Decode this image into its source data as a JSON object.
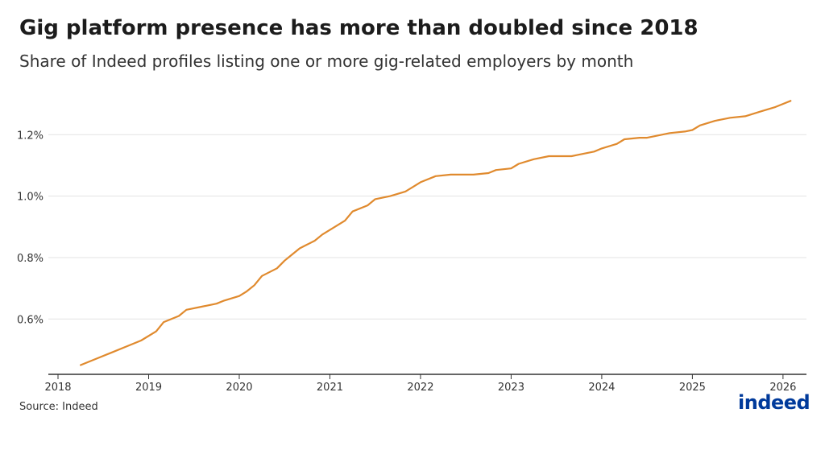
{
  "title": "Gig platform presence has more than doubled since 2018",
  "subtitle": "Share of Indeed profiles listing one or more gig-related employers by month",
  "source": "Source: Indeed",
  "logo_text": "indeed",
  "colors": {
    "line": "#e08a2e",
    "grid": "#e3e3e3",
    "axis": "#333333",
    "logo": "#003a9b"
  },
  "chart_data": {
    "type": "line",
    "title": "Gig platform presence has more than doubled since 2018",
    "subtitle": "Share of Indeed profiles listing one or more gig-related employers by month",
    "xlabel": "",
    "ylabel": "",
    "y_unit": "%",
    "grid": "horizontal",
    "legend": "none",
    "x_ticks": [
      "2018",
      "2019",
      "2020",
      "2021",
      "2022",
      "2023",
      "2024",
      "2025",
      "2026"
    ],
    "y_ticks": [
      "0.6%",
      "0.8%",
      "1.0%",
      "1.2%"
    ],
    "y_tick_values": [
      0.6,
      0.8,
      1.0,
      1.2
    ],
    "xlim": [
      "2018-01",
      "2026-04"
    ],
    "ylim": [
      0.42,
      1.35
    ],
    "series": [
      {
        "points": [
          [
            "2018-04",
            0.45
          ],
          [
            "2018-06",
            0.47
          ],
          [
            "2018-08",
            0.49
          ],
          [
            "2018-10",
            0.51
          ],
          [
            "2018-12",
            0.53
          ],
          [
            "2019-02",
            0.56
          ],
          [
            "2019-03",
            0.59
          ],
          [
            "2019-05",
            0.61
          ],
          [
            "2019-06",
            0.63
          ],
          [
            "2019-08",
            0.64
          ],
          [
            "2019-10",
            0.65
          ],
          [
            "2019-11",
            0.66
          ],
          [
            "2020-01",
            0.675
          ],
          [
            "2020-02",
            0.69
          ],
          [
            "2020-03",
            0.71
          ],
          [
            "2020-04",
            0.74
          ],
          [
            "2020-06",
            0.765
          ],
          [
            "2020-07",
            0.79
          ],
          [
            "2020-08",
            0.81
          ],
          [
            "2020-09",
            0.83
          ],
          [
            "2020-11",
            0.855
          ],
          [
            "2020-12",
            0.875
          ],
          [
            "2021-01",
            0.89
          ],
          [
            "2021-03",
            0.92
          ],
          [
            "2021-04",
            0.95
          ],
          [
            "2021-06",
            0.97
          ],
          [
            "2021-07",
            0.99
          ],
          [
            "2021-09",
            1.0
          ],
          [
            "2021-11",
            1.015
          ],
          [
            "2021-12",
            1.03
          ],
          [
            "2022-01",
            1.045
          ],
          [
            "2022-03",
            1.065
          ],
          [
            "2022-05",
            1.07
          ],
          [
            "2022-07",
            1.07
          ],
          [
            "2022-08",
            1.07
          ],
          [
            "2022-10",
            1.075
          ],
          [
            "2022-11",
            1.085
          ],
          [
            "2023-01",
            1.09
          ],
          [
            "2023-02",
            1.105
          ],
          [
            "2023-04",
            1.12
          ],
          [
            "2023-06",
            1.13
          ],
          [
            "2023-07",
            1.13
          ],
          [
            "2023-09",
            1.13
          ],
          [
            "2023-10",
            1.135
          ],
          [
            "2023-12",
            1.145
          ],
          [
            "2024-01",
            1.155
          ],
          [
            "2024-03",
            1.17
          ],
          [
            "2024-04",
            1.185
          ],
          [
            "2024-06",
            1.19
          ],
          [
            "2024-07",
            1.19
          ],
          [
            "2024-08",
            1.195
          ],
          [
            "2024-10",
            1.205
          ],
          [
            "2024-12",
            1.21
          ],
          [
            "2025-01",
            1.215
          ],
          [
            "2025-02",
            1.23
          ],
          [
            "2025-04",
            1.245
          ],
          [
            "2025-05",
            1.25
          ],
          [
            "2025-06",
            1.255
          ],
          [
            "2025-08",
            1.26
          ],
          [
            "2025-10",
            1.275
          ],
          [
            "2025-12",
            1.29
          ],
          [
            "2026-02",
            1.31
          ]
        ]
      }
    ]
  }
}
